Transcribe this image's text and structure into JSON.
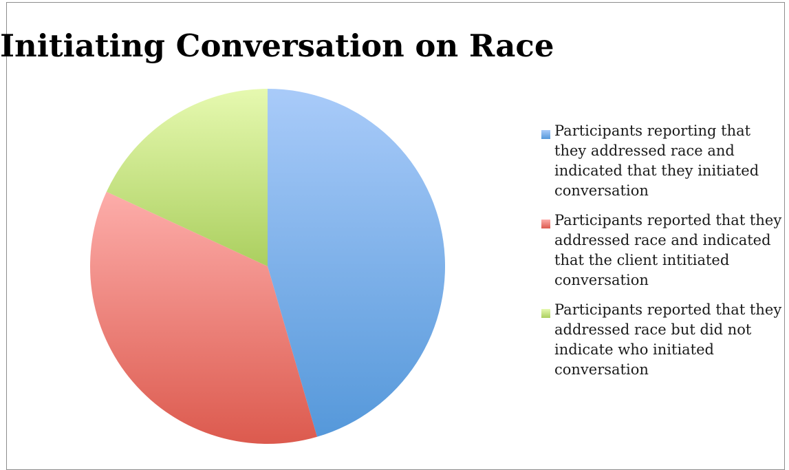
{
  "chart_data": {
    "type": "pie",
    "title": "Initiating Conversation on Race",
    "legend_position": "right",
    "slices": [
      {
        "label": "Participants reporting that they addressed race and indicated that they initiated conversation",
        "value": 45.5,
        "color": "#6aa6e6",
        "gradient": [
          "#a9cbf9",
          "#5598da"
        ]
      },
      {
        "label": "Participants reported that they addressed race and indicated that the client intitiated conversation",
        "value": 36.4,
        "color": "#e6766e",
        "gradient": [
          "#fdadaa",
          "#dc5a4e"
        ]
      },
      {
        "label": "Participants reported that they addressed race but did not indicate who initiated conversation",
        "value": 18.1,
        "color": "#c4df86",
        "gradient": [
          "#e6f9b0",
          "#abcf5f"
        ]
      }
    ]
  }
}
